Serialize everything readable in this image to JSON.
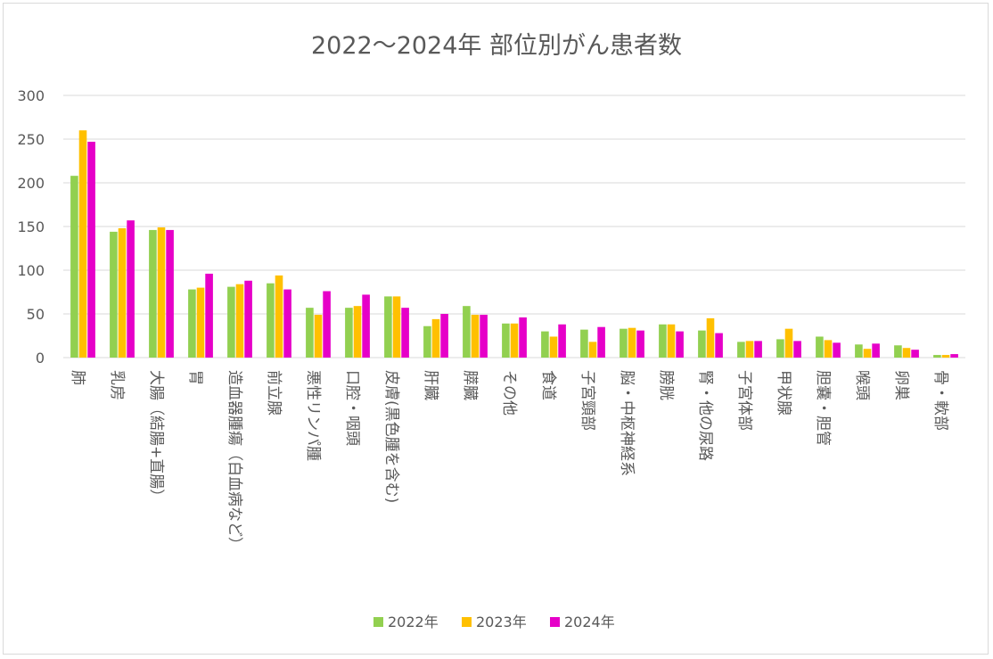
{
  "chart_data": {
    "type": "bar",
    "title": "2022〜2024年 部位別がん患者数",
    "xlabel": "",
    "ylabel": "",
    "ylim": [
      0,
      300
    ],
    "yticks": [
      0,
      50,
      100,
      150,
      200,
      250,
      300
    ],
    "grid": true,
    "legend": "bottom",
    "categories": [
      "肺",
      "乳房",
      "大腸（結腸+直腸）",
      "胃",
      "造血器腫瘍（白血病など）",
      "前立腺",
      "悪性リンパ腫",
      "口腔・咽頭",
      "皮膚(黒色腫を含む)",
      "肝臓",
      "膵臓",
      "その他",
      "食道",
      "子宮頸部",
      "脳・中枢神経系",
      "膀胱",
      "腎・他の尿路",
      "子宮体部",
      "甲状腺",
      "胆嚢・胆管",
      "喉頭",
      "卵巣",
      "骨・軟部"
    ],
    "series": [
      {
        "name": "2022年",
        "color": "#92d050",
        "values": [
          208,
          144,
          146,
          78,
          81,
          85,
          57,
          57,
          70,
          36,
          59,
          39,
          30,
          32,
          33,
          38,
          31,
          18,
          21,
          24,
          15,
          14,
          3
        ]
      },
      {
        "name": "2023年",
        "color": "#ffc000",
        "values": [
          260,
          148,
          149,
          80,
          84,
          94,
          49,
          59,
          70,
          44,
          49,
          39,
          24,
          18,
          34,
          38,
          45,
          19,
          33,
          20,
          10,
          11,
          3
        ]
      },
      {
        "name": "2024年",
        "color": "#e600c8",
        "values": [
          247,
          157,
          146,
          96,
          88,
          78,
          76,
          72,
          57,
          50,
          49,
          46,
          38,
          35,
          31,
          30,
          28,
          19,
          19,
          17,
          16,
          9,
          4
        ]
      }
    ]
  }
}
